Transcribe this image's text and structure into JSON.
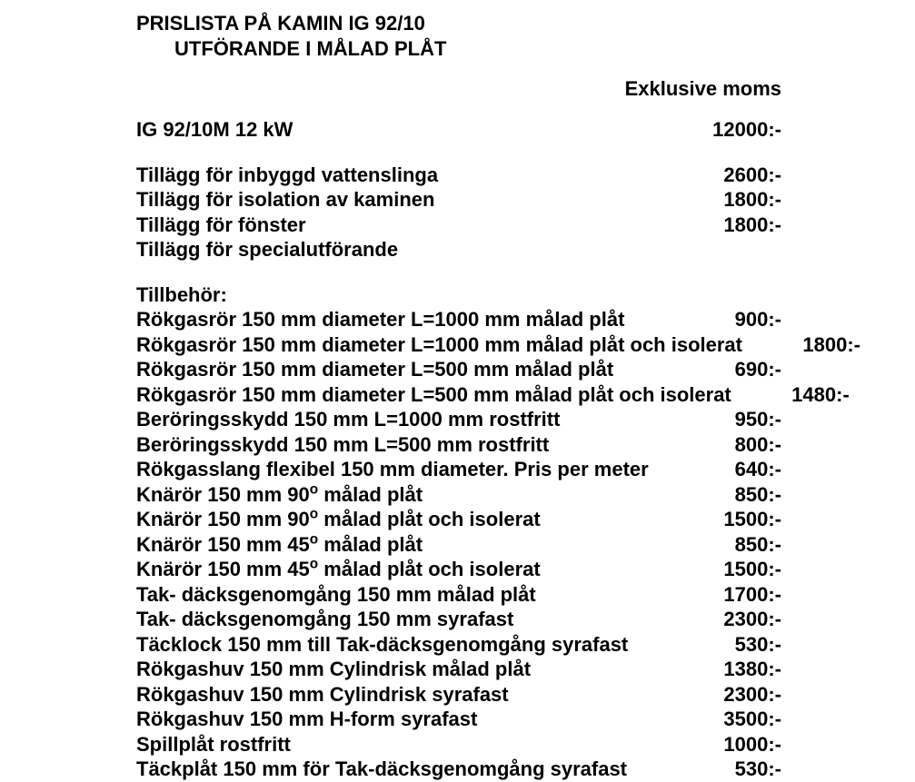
{
  "title_line1": "PRISLISTA PÅ KAMIN IG 92/10",
  "title_line2": "UTFÖRANDE I MÅLAD PLÅT",
  "subheader": "Exklusive moms",
  "main_item": {
    "label": "IG 92/10M    12 kW",
    "price": "12000:-"
  },
  "addons": [
    {
      "label": "Tillägg för inbyggd vattenslinga",
      "price": "2600:-"
    },
    {
      "label": "Tillägg för isolation av kaminen",
      "price": "1800:-"
    },
    {
      "label": "Tillägg för fönster",
      "price": "1800:-"
    },
    {
      "label": "Tillägg för specialutförande",
      "price": ""
    }
  ],
  "accessories_label": "Tillbehör:",
  "accessories": [
    {
      "label": "Rökgasrör 150 mm diameter L=1000 mm målad plåt",
      "price": "900:-"
    },
    {
      "label": "Rökgasrör 150 mm diameter L=1000 mm målad plåt och isolerat",
      "price": "1800:-"
    },
    {
      "label": "Rökgasrör 150 mm diameter L=500 mm målad plåt",
      "price": "690:-"
    },
    {
      "label": "Rökgasrör 150 mm diameter L=500 mm målad plåt och isolerat",
      "price": "1480:-"
    },
    {
      "label": "Beröringsskydd 150 mm  L=1000 mm rostfritt",
      "price": "950:-"
    },
    {
      "label": "Beröringsskydd 150 mm  L=500 mm rostfritt",
      "price": "800:-"
    },
    {
      "label": "Rökgasslang flexibel 150 mm diameter. Pris per meter",
      "price": "640:-"
    },
    {
      "label_html": "Knärör 150 mm 90<span class=\"sup\">o</span> målad plåt",
      "price": "850:-"
    },
    {
      "label_html": "Knärör 150 mm 90<span class=\"sup\">o</span> målad plåt och isolerat",
      "price": "1500:-"
    },
    {
      "label_html": "Knärör 150 mm 45<span class=\"sup\">o</span> målad plåt",
      "price": "850:-"
    },
    {
      "label_html": "Knärör 150 mm 45<span class=\"sup\">o</span> målad plåt och isolerat",
      "price": "1500:-"
    },
    {
      "label": "Tak- däcksgenomgång 150 mm målad plåt",
      "price": "1700:-"
    },
    {
      "label": "Tak- däcksgenomgång 150 mm syrafast",
      "price": "2300:-"
    },
    {
      "label": "Täcklock 150 mm till Tak-däcksgenomgång syrafast",
      "price": "530:-"
    },
    {
      "label": "Rökgashuv 150 mm Cylindrisk målad plåt",
      "price": "1380:-"
    },
    {
      "label": "Rökgashuv 150 mm Cylindrisk syrafast",
      "price": "2300:-"
    },
    {
      "label": "Rökgashuv 150 mm H-form syrafast",
      "price": "3500:-"
    },
    {
      "label": "Spillplåt rostfritt",
      "price": "1000:-"
    },
    {
      "label": "Täckplåt 150 mm för Tak-däcksgenomgång syrafast",
      "price": "530:-"
    }
  ]
}
